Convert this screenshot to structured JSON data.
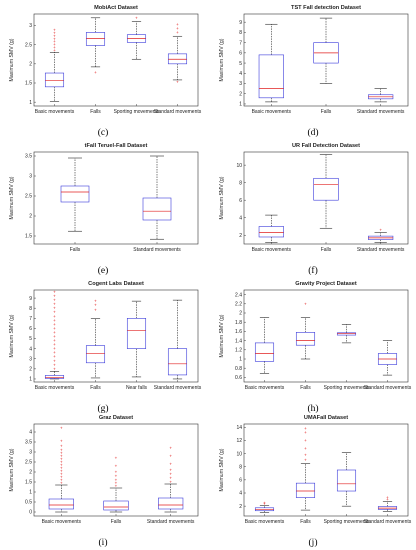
{
  "chart_data": [
    {
      "type": "boxplot",
      "panel_label": "(c)",
      "title": "MobiAct Dataset",
      "ylabel": "Maximum SMV (g)",
      "ylim": [
        0.9,
        3.3
      ],
      "yticks": [
        1,
        1.5,
        2,
        2.5,
        3
      ],
      "categories": [
        "Basic movements",
        "Falls",
        "Sporting movements",
        "Standard movements"
      ],
      "boxes": [
        {
          "q1": 1.4,
          "median": 1.56,
          "q3": 1.76,
          "whisker_low": 1.02,
          "whisker_high": 2.3,
          "outliers": [
            2.35,
            2.42,
            2.5,
            2.58,
            2.65,
            2.72,
            2.8,
            2.88
          ]
        },
        {
          "q1": 2.48,
          "median": 2.66,
          "q3": 2.82,
          "whisker_low": 1.92,
          "whisker_high": 3.2,
          "outliers": [
            1.78
          ]
        },
        {
          "q1": 2.56,
          "median": 2.66,
          "q3": 2.76,
          "whisker_low": 2.12,
          "whisker_high": 3.1,
          "outliers": [
            3.2
          ]
        },
        {
          "q1": 2.0,
          "median": 2.12,
          "q3": 2.26,
          "whisker_low": 1.58,
          "whisker_high": 2.72,
          "outliers": [
            1.52,
            2.82,
            2.92,
            3.02
          ]
        }
      ]
    },
    {
      "type": "boxplot",
      "panel_label": "(d)",
      "title": "TST Fall detection  Dataset",
      "ylabel": "Maximum SMV (g)",
      "ylim": [
        0.8,
        9.8
      ],
      "yticks": [
        1,
        2,
        3,
        4,
        5,
        6,
        7,
        8,
        9
      ],
      "categories": [
        "Basic movements",
        "Falls",
        "Standard movements"
      ],
      "boxes": [
        {
          "q1": 1.6,
          "median": 2.5,
          "q3": 5.8,
          "whisker_low": 1.2,
          "whisker_high": 8.8,
          "outliers": []
        },
        {
          "q1": 5.0,
          "median": 6.0,
          "q3": 7.0,
          "whisker_low": 3.0,
          "whisker_high": 9.4,
          "outliers": []
        },
        {
          "q1": 1.5,
          "median": 1.7,
          "q3": 1.9,
          "whisker_low": 1.2,
          "whisker_high": 2.5,
          "outliers": []
        }
      ]
    },
    {
      "type": "boxplot",
      "panel_label": "(e)",
      "title": "tFall Teruel-Fall  Dataset",
      "ylabel": "Maximum SMV (g)",
      "ylim": [
        1.3,
        3.6
      ],
      "yticks": [
        1.5,
        2,
        2.5,
        3,
        3.5
      ],
      "categories": [
        "Falls",
        "Standard movements"
      ],
      "boxes": [
        {
          "q1": 2.35,
          "median": 2.6,
          "q3": 2.75,
          "whisker_low": 1.62,
          "whisker_high": 3.45,
          "outliers": []
        },
        {
          "q1": 1.9,
          "median": 2.12,
          "q3": 2.45,
          "whisker_low": 1.42,
          "whisker_high": 3.5,
          "outliers": []
        }
      ]
    },
    {
      "type": "boxplot",
      "panel_label": "(f)",
      "title": "UR Fall Detection Dataset",
      "ylabel": "Maximum SMV (g)",
      "ylim": [
        1.0,
        11.5
      ],
      "yticks": [
        2,
        4,
        6,
        8,
        10
      ],
      "categories": [
        "Basic movements",
        "Falls",
        "Standard movements"
      ],
      "boxes": [
        {
          "q1": 1.8,
          "median": 2.3,
          "q3": 3.0,
          "whisker_low": 1.2,
          "whisker_high": 4.3,
          "outliers": []
        },
        {
          "q1": 6.0,
          "median": 7.8,
          "q3": 8.5,
          "whisker_low": 2.8,
          "whisker_high": 11.2,
          "outliers": []
        },
        {
          "q1": 1.5,
          "median": 1.7,
          "q3": 1.9,
          "whisker_low": 1.2,
          "whisker_high": 2.3,
          "outliers": [
            2.6
          ]
        }
      ]
    },
    {
      "type": "boxplot",
      "panel_label": "(g)",
      "title": "Cogent Labs Dataset",
      "ylabel": "Maximum SMV (g)",
      "ylim": [
        0.7,
        9.8
      ],
      "yticks": [
        1,
        2,
        3,
        4,
        5,
        6,
        7,
        8,
        9
      ],
      "categories": [
        "Basic movements",
        "Falls",
        "Near falls",
        "Standard movements"
      ],
      "boxes": [
        {
          "q1": 1.05,
          "median": 1.15,
          "q3": 1.35,
          "whisker_low": 1.0,
          "whisker_high": 1.75,
          "outliers": [
            2.0,
            2.4,
            2.8,
            3.2,
            3.6,
            4.0,
            4.4,
            4.8,
            5.2,
            5.6,
            6.0,
            6.4,
            6.8,
            7.2,
            7.6,
            8.0,
            8.4,
            8.8,
            9.2,
            9.6
          ]
        },
        {
          "q1": 2.6,
          "median": 3.5,
          "q3": 4.3,
          "whisker_low": 1.1,
          "whisker_high": 7.0,
          "outliers": [
            7.8,
            8.3,
            8.7
          ]
        },
        {
          "q1": 4.0,
          "median": 5.8,
          "q3": 7.0,
          "whisker_low": 1.2,
          "whisker_high": 8.7,
          "outliers": []
        },
        {
          "q1": 1.4,
          "median": 2.5,
          "q3": 4.0,
          "whisker_low": 1.0,
          "whisker_high": 8.8,
          "outliers": []
        }
      ]
    },
    {
      "type": "boxplot",
      "panel_label": "(h)",
      "title": "Gravity Project Dataset",
      "ylabel": "Maximum SMV (g)",
      "ylim": [
        0.5,
        2.5
      ],
      "yticks": [
        0.6,
        0.8,
        1,
        1.2,
        1.4,
        1.6,
        1.8,
        2,
        2.2,
        2.4
      ],
      "categories": [
        "Basic movements",
        "Falls",
        "Sporting movements",
        "Standard movements"
      ],
      "boxes": [
        {
          "q1": 0.95,
          "median": 1.12,
          "q3": 1.35,
          "whisker_low": 0.68,
          "whisker_high": 1.9,
          "outliers": []
        },
        {
          "q1": 1.3,
          "median": 1.4,
          "q3": 1.58,
          "whisker_low": 1.0,
          "whisker_high": 1.9,
          "outliers": [
            2.2
          ]
        },
        {
          "q1": 1.52,
          "median": 1.55,
          "q3": 1.57,
          "whisker_low": 1.35,
          "whisker_high": 1.75,
          "outliers": []
        },
        {
          "q1": 0.88,
          "median": 1.0,
          "q3": 1.12,
          "whisker_low": 0.65,
          "whisker_high": 1.4,
          "outliers": []
        }
      ]
    },
    {
      "type": "boxplot",
      "panel_label": "(i)",
      "title": "Graz Dataset",
      "ylabel": "Maximum SMV (g)",
      "ylim": [
        -0.2,
        4.4
      ],
      "yticks": [
        0,
        0.5,
        1,
        1.5,
        2,
        2.5,
        3,
        3.5,
        4
      ],
      "categories": [
        "Basic movements",
        "Falls",
        "Standard movements"
      ],
      "boxes": [
        {
          "q1": 0.15,
          "median": 0.35,
          "q3": 0.65,
          "whisker_low": 0.0,
          "whisker_high": 1.35,
          "outliers": [
            1.45,
            1.6,
            1.75,
            1.9,
            2.05,
            2.2,
            2.35,
            2.5,
            2.65,
            2.8,
            2.95,
            3.1,
            3.3,
            3.55,
            4.2
          ]
        },
        {
          "q1": 0.1,
          "median": 0.25,
          "q3": 0.55,
          "whisker_low": 0.0,
          "whisker_high": 1.2,
          "outliers": [
            1.3,
            1.45,
            1.6,
            1.8,
            2.0,
            2.3,
            2.7
          ]
        },
        {
          "q1": 0.15,
          "median": 0.35,
          "q3": 0.7,
          "whisker_low": 0.0,
          "whisker_high": 1.4,
          "outliers": [
            1.5,
            1.7,
            1.9,
            2.1,
            2.4,
            2.8,
            3.2
          ]
        }
      ]
    },
    {
      "type": "boxplot",
      "panel_label": "(j)",
      "title": "UMAFall Dataset",
      "ylabel": "Maximum SMV (g)",
      "ylim": [
        0.5,
        14.5
      ],
      "yticks": [
        2,
        4,
        6,
        8,
        10,
        12,
        14
      ],
      "categories": [
        "Basic movements",
        "Falls",
        "Sporting movements",
        "Standard movements"
      ],
      "boxes": [
        {
          "q1": 1.3,
          "median": 1.5,
          "q3": 1.75,
          "whisker_low": 1.05,
          "whisker_high": 2.1,
          "outliers": [
            2.3,
            2.5
          ]
        },
        {
          "q1": 3.3,
          "median": 4.3,
          "q3": 5.5,
          "whisker_low": 1.4,
          "whisker_high": 8.5,
          "outliers": [
            9.0,
            9.8,
            10.8,
            12.0,
            13.2,
            13.8
          ]
        },
        {
          "q1": 4.3,
          "median": 5.4,
          "q3": 7.5,
          "whisker_low": 2.0,
          "whisker_high": 10.2,
          "outliers": []
        },
        {
          "q1": 1.5,
          "median": 1.7,
          "q3": 1.95,
          "whisker_low": 1.2,
          "whisker_high": 2.7,
          "outliers": [
            3.0,
            3.3
          ]
        }
      ]
    }
  ]
}
